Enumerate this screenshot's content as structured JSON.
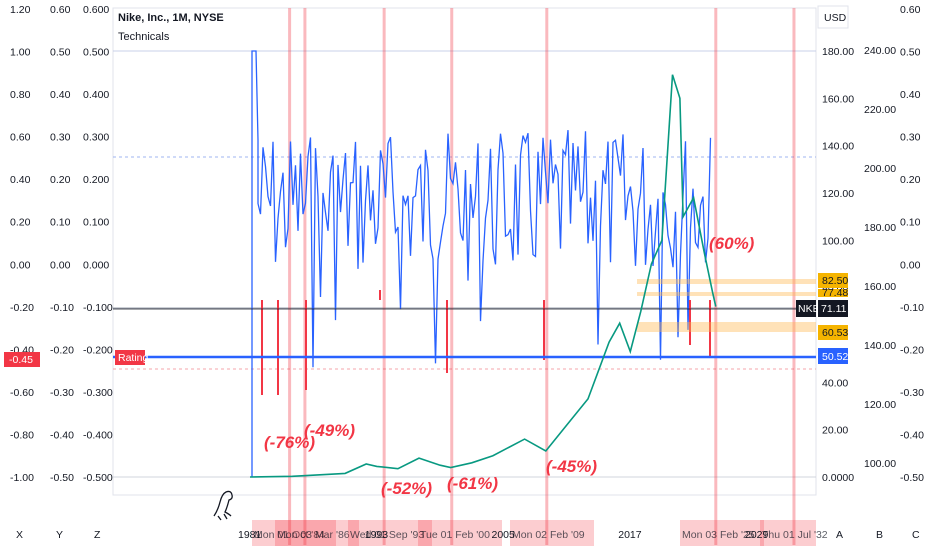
{
  "header": {
    "title": "Nike, Inc., 1M, NYSE",
    "subtitle": "Technicals"
  },
  "currency": "USD",
  "colors": {
    "price": "#089981",
    "price_down": "#f23645",
    "rating": "#2962ff",
    "highlight": "#f23645",
    "band": "#ffb74d"
  },
  "bottom_letters": [
    "X",
    "Y",
    "Z",
    "A",
    "B",
    "C"
  ],
  "chart_data": {
    "type": "line",
    "title": "Nike, Inc., 1M, NYSE",
    "subtitle": "Technicals",
    "x_years": [
      "1981",
      "1993",
      "2005",
      "2017",
      "2029"
    ],
    "x_date_tags": [
      "Mon 01 Oct '84",
      "Mon 03 Mar '86",
      "Wed 01 Sep '93",
      "Tue 01 Feb '00",
      "Mon 02 Feb '09",
      "Mon 03 Feb '25",
      "Thu 01 Jul '32"
    ],
    "main_axis": {
      "unit": "USD",
      "ticks": [
        "0.0000",
        "20.00",
        "40.00",
        "60.00",
        "80.00",
        "100.00",
        "120.00",
        "140.00",
        "160.00",
        "180.00"
      ],
      "ylim": [
        0,
        180
      ]
    },
    "right_axis": {
      "ticks": [
        "100.00",
        "120.00",
        "140.00",
        "160.00",
        "180.00",
        "200.00",
        "220.00",
        "240.00"
      ],
      "ylim": [
        100,
        240
      ]
    },
    "far_right_axis": {
      "ticks": [
        "0.60",
        "0.50",
        "0.40",
        "0.30",
        "0.20",
        "0.10",
        "0.00",
        "-0.10",
        "-0.20",
        "-0.30",
        "-0.40",
        "-0.50"
      ]
    },
    "left_axis_1": {
      "ticks": [
        "1.20",
        "1.00",
        "0.80",
        "0.60",
        "0.40",
        "0.20",
        "0.00",
        "-0.20",
        "-0.40",
        "-0.60",
        "-0.80",
        "-1.00"
      ]
    },
    "left_axis_2": {
      "ticks": [
        "0.60",
        "0.50",
        "0.40",
        "0.30",
        "0.20",
        "0.10",
        "0.00",
        "-0.10",
        "-0.20",
        "-0.30",
        "-0.40",
        "-0.50"
      ]
    },
    "left_axis_3": {
      "ticks": [
        "0.600",
        "0.500",
        "0.400",
        "0.300",
        "0.200",
        "0.100",
        "0.000",
        "-0.100",
        "-0.200",
        "-0.300",
        "-0.400",
        "-0.500"
      ]
    },
    "left_marker": "-0.45",
    "rating_label": "Rating",
    "price_labels": {
      "symbol": "NKE",
      "last": "71.11",
      "rating_level": "50.52",
      "level_top": "82.50",
      "level_partial": "77.48",
      "level_bottom": "60.53"
    },
    "annotations": [
      "(-76%)",
      "(-49%)",
      "(-52%)",
      "(-61%)",
      "(-45%)",
      "(60%)"
    ],
    "series": [
      {
        "name": "NKE",
        "points": [
          [
            1981,
            0
          ],
          [
            1985,
            0.3
          ],
          [
            1990,
            1.5
          ],
          [
            1992,
            5.5
          ],
          [
            1993,
            4.5
          ],
          [
            1995,
            3.5
          ],
          [
            1997,
            8
          ],
          [
            1999,
            5
          ],
          [
            2000,
            4
          ],
          [
            2002,
            6
          ],
          [
            2004,
            9
          ],
          [
            2007,
            16
          ],
          [
            2009,
            11
          ],
          [
            2011,
            22
          ],
          [
            2013,
            33
          ],
          [
            2015,
            57
          ],
          [
            2016,
            65
          ],
          [
            2017,
            53
          ],
          [
            2018,
            70
          ],
          [
            2019,
            90
          ],
          [
            2020,
            100
          ],
          [
            2021,
            170
          ],
          [
            2021.7,
            160
          ],
          [
            2022,
            110
          ],
          [
            2023,
            118
          ],
          [
            2024,
            95
          ],
          [
            2024.8,
            78
          ],
          [
            2025.1,
            72
          ]
        ]
      }
    ]
  }
}
